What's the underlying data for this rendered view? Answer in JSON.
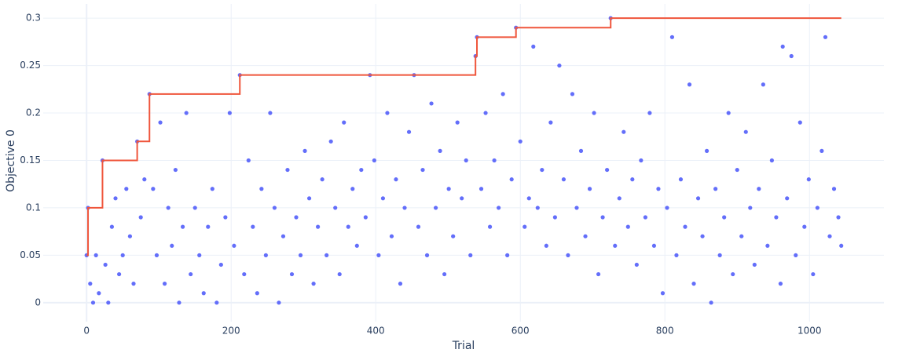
{
  "chart_data": {
    "type": "scatter",
    "xlabel": "Trial",
    "ylabel": "Objective 0",
    "xlim": [
      -60,
      1103
    ],
    "ylim": [
      -0.02,
      0.315
    ],
    "xticks": [
      0,
      200,
      400,
      600,
      800,
      1000
    ],
    "yticks": [
      0,
      0.05,
      0.1,
      0.15,
      0.2,
      0.25,
      0.3
    ],
    "grid": true,
    "series": [
      {
        "color": "#636efa",
        "x": [
          0,
          2,
          5,
          9,
          13,
          17,
          22,
          26,
          30,
          35,
          40,
          45,
          50,
          55,
          60,
          65,
          70,
          75,
          80,
          87,
          92,
          97,
          102,
          108,
          113,
          118,
          123,
          128,
          133,
          138,
          144,
          150,
          156,
          162,
          168,
          174,
          180,
          186,
          192,
          198,
          204,
          212,
          218,
          224,
          230,
          236,
          242,
          248,
          254,
          260,
          266,
          272,
          278,
          284,
          290,
          296,
          302,
          308,
          314,
          320,
          326,
          332,
          338,
          344,
          350,
          356,
          362,
          368,
          374,
          380,
          386,
          392,
          398,
          404,
          410,
          416,
          422,
          428,
          434,
          440,
          446,
          453,
          459,
          465,
          471,
          477,
          483,
          489,
          495,
          501,
          507,
          513,
          519,
          525,
          531,
          538,
          540,
          546,
          552,
          558,
          564,
          570,
          576,
          582,
          588,
          594,
          600,
          606,
          612,
          618,
          624,
          630,
          636,
          642,
          648,
          654,
          660,
          666,
          672,
          678,
          684,
          690,
          696,
          702,
          708,
          714,
          720,
          725,
          731,
          737,
          743,
          749,
          755,
          761,
          767,
          773,
          779,
          785,
          791,
          797,
          803,
          810,
          816,
          822,
          828,
          834,
          840,
          846,
          852,
          858,
          864,
          870,
          876,
          882,
          888,
          894,
          900,
          906,
          912,
          918,
          924,
          930,
          936,
          942,
          948,
          954,
          960,
          963,
          969,
          975,
          981,
          987,
          993,
          999,
          1005,
          1011,
          1017,
          1022,
          1028,
          1034,
          1040,
          1044
        ],
        "values": [
          0.05,
          0.1,
          0.02,
          0,
          0.05,
          0.01,
          0.15,
          0.04,
          0,
          0.08,
          0.11,
          0.03,
          0.05,
          0.12,
          0.07,
          0.02,
          0.17,
          0.09,
          0.13,
          0.22,
          0.12,
          0.05,
          0.19,
          0.02,
          0.1,
          0.06,
          0.14,
          0,
          0.08,
          0.2,
          0.03,
          0.1,
          0.05,
          0.01,
          0.08,
          0.12,
          0,
          0.04,
          0.09,
          0.2,
          0.06,
          0.24,
          0.03,
          0.15,
          0.08,
          0.01,
          0.12,
          0.05,
          0.2,
          0.1,
          0,
          0.07,
          0.14,
          0.03,
          0.09,
          0.05,
          0.16,
          0.11,
          0.02,
          0.08,
          0.13,
          0.05,
          0.17,
          0.1,
          0.03,
          0.19,
          0.08,
          0.12,
          0.06,
          0.14,
          0.09,
          0.24,
          0.15,
          0.05,
          0.11,
          0.2,
          0.07,
          0.13,
          0.02,
          0.1,
          0.18,
          0.24,
          0.08,
          0.14,
          0.05,
          0.21,
          0.1,
          0.16,
          0.03,
          0.12,
          0.07,
          0.19,
          0.11,
          0.15,
          0.05,
          0.26,
          0.28,
          0.12,
          0.2,
          0.08,
          0.15,
          0.1,
          0.22,
          0.05,
          0.13,
          0.29,
          0.17,
          0.08,
          0.11,
          0.27,
          0.1,
          0.14,
          0.06,
          0.19,
          0.09,
          0.25,
          0.13,
          0.05,
          0.22,
          0.1,
          0.16,
          0.07,
          0.12,
          0.2,
          0.03,
          0.09,
          0.14,
          0.3,
          0.06,
          0.11,
          0.18,
          0.08,
          0.13,
          0.04,
          0.15,
          0.09,
          0.2,
          0.06,
          0.12,
          0.01,
          0.1,
          0.28,
          0.05,
          0.13,
          0.08,
          0.23,
          0.02,
          0.11,
          0.07,
          0.16,
          0,
          0.12,
          0.05,
          0.09,
          0.2,
          0.03,
          0.14,
          0.07,
          0.18,
          0.1,
          0.04,
          0.12,
          0.23,
          0.06,
          0.15,
          0.09,
          0.02,
          0.27,
          0.11,
          0.26,
          0.05,
          0.19,
          0.08,
          0.13,
          0.03,
          0.1,
          0.16,
          0.28,
          0.07,
          0.12,
          0.09,
          0.06
        ]
      },
      {
        "type": "step",
        "color": "#ef553b",
        "x": [
          0,
          2,
          22,
          70,
          87,
          212,
          538,
          540,
          594,
          725,
          1044
        ],
        "values": [
          0.05,
          0.1,
          0.15,
          0.17,
          0.22,
          0.24,
          0.26,
          0.28,
          0.29,
          0.3,
          0.3
        ]
      }
    ]
  }
}
